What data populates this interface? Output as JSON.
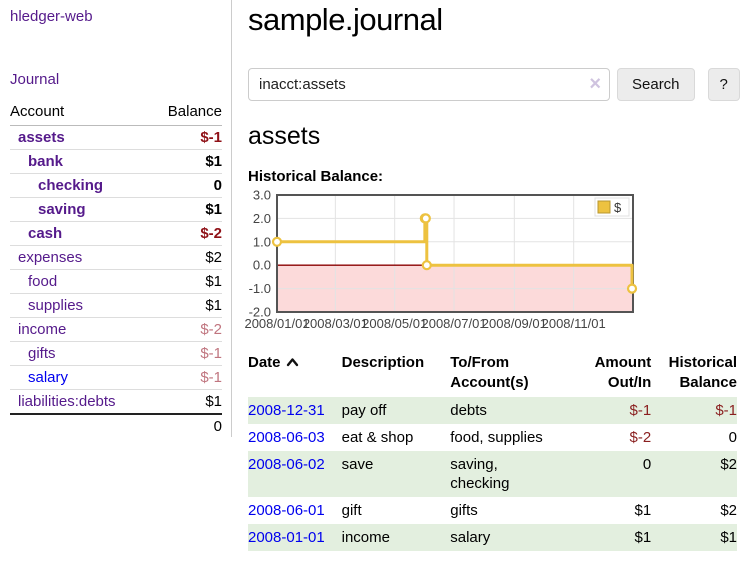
{
  "app": {
    "brand": "hledger-web",
    "nav_journal": "Journal",
    "title": "sample.journal"
  },
  "search": {
    "value": "inacct:assets",
    "clear_icon": "×",
    "button_label": "Search",
    "help_label": "?"
  },
  "account_view": {
    "heading": "assets",
    "chart_label": "Historical Balance:"
  },
  "sidebar": {
    "headers": {
      "account": "Account",
      "balance": "Balance"
    },
    "accounts": [
      {
        "name": "assets",
        "indent": 0,
        "balance": "$-1",
        "bold": true,
        "balance_style": "neg-strong",
        "link_style": "purple"
      },
      {
        "name": "bank",
        "indent": 1,
        "balance": "$1",
        "bold": true,
        "balance_style": "",
        "link_style": "purple"
      },
      {
        "name": "checking",
        "indent": 2,
        "balance": "0",
        "bold": true,
        "balance_style": "",
        "link_style": "purple"
      },
      {
        "name": "saving",
        "indent": 2,
        "balance": "$1",
        "bold": true,
        "balance_style": "",
        "link_style": "purple"
      },
      {
        "name": "cash",
        "indent": 1,
        "balance": "$-2",
        "bold": true,
        "balance_style": "neg-strong",
        "link_style": "purple"
      },
      {
        "name": "expenses",
        "indent": 0,
        "balance": "$2",
        "bold": false,
        "balance_style": "",
        "link_style": "purple"
      },
      {
        "name": "food",
        "indent": 1,
        "balance": "$1",
        "bold": false,
        "balance_style": "",
        "link_style": "purple"
      },
      {
        "name": "supplies",
        "indent": 1,
        "balance": "$1",
        "bold": false,
        "balance_style": "",
        "link_style": "purple"
      },
      {
        "name": "income",
        "indent": 0,
        "balance": "$-2",
        "bold": false,
        "balance_style": "neg-muted",
        "link_style": "purple"
      },
      {
        "name": "gifts",
        "indent": 1,
        "balance": "$-1",
        "bold": false,
        "balance_style": "neg-muted",
        "link_style": "purple"
      },
      {
        "name": "salary",
        "indent": 1,
        "balance": "$-1",
        "bold": false,
        "balance_style": "neg-muted",
        "link_style": "blue"
      },
      {
        "name": "liabilities:debts",
        "indent": 0,
        "balance": "$1",
        "bold": false,
        "balance_style": "",
        "link_style": "purple"
      }
    ],
    "total": "0"
  },
  "register": {
    "headers": {
      "date": "Date",
      "sort_icon": "chevron-up",
      "description": "Description",
      "tofrom_line1": "To/From",
      "tofrom_line2": "Account(s)",
      "amount_line1": "Amount",
      "amount_line2": "Out/In",
      "balance_line1": "Historical",
      "balance_line2": "Balance"
    },
    "rows": [
      {
        "date": "2008-12-31",
        "description": "pay off",
        "accounts": "debts",
        "amount": "$-1",
        "balance": "$-1",
        "amount_neg": true,
        "balance_neg": true,
        "stripe": true
      },
      {
        "date": "2008-06-03",
        "description": "eat & shop",
        "accounts": "food, supplies",
        "amount": "$-2",
        "balance": "0",
        "amount_neg": true,
        "balance_neg": false,
        "stripe": false
      },
      {
        "date": "2008-06-02",
        "description": "save",
        "accounts": "saving,\nchecking",
        "amount": "0",
        "balance": "$2",
        "amount_neg": false,
        "balance_neg": false,
        "stripe": true
      },
      {
        "date": "2008-06-01",
        "description": "gift",
        "accounts": "gifts",
        "amount": "$1",
        "balance": "$2",
        "amount_neg": false,
        "balance_neg": false,
        "stripe": false
      },
      {
        "date": "2008-01-01",
        "description": "income",
        "accounts": "salary",
        "amount": "$1",
        "balance": "$1",
        "amount_neg": false,
        "balance_neg": false,
        "stripe": true
      }
    ]
  },
  "chart_data": {
    "type": "line",
    "step": true,
    "title": "Historical Balance:",
    "series": [
      {
        "name": "$",
        "color": "#EDC240",
        "points": [
          [
            "2008-01-01",
            1
          ],
          [
            "2008-06-01",
            2
          ],
          [
            "2008-06-02",
            2
          ],
          [
            "2008-06-03",
            0
          ],
          [
            "2008-12-31",
            -1
          ]
        ]
      }
    ],
    "xlim": [
      "2008-01-01",
      "2009-01-01"
    ],
    "ylim": [
      -2,
      3
    ],
    "y_ticks": [
      3,
      2,
      1,
      0,
      -1,
      -2
    ],
    "x_ticks": [
      {
        "date": "2008-01-01",
        "label": "2008/01/01"
      },
      {
        "date": "2008-03-01",
        "label": "2008/03/01"
      },
      {
        "date": "2008-05-01",
        "label": "2008/05/01"
      },
      {
        "date": "2008-07-01",
        "label": "2008/07/01"
      },
      {
        "date": "2008-09-01",
        "label": "2008/09/01"
      },
      {
        "date": "2008-11-01",
        "label": "2008/11/01"
      }
    ],
    "legend": {
      "label": "$",
      "position": "top-right"
    },
    "grid": true,
    "colors": {
      "line": "#EDC240",
      "marker_fill": "#ffffff",
      "negative_region": "#fcdada",
      "zero_line": "#8b0000",
      "border": "#545454",
      "gridline": "#e3e3e3",
      "tick_text": "#444444"
    }
  }
}
